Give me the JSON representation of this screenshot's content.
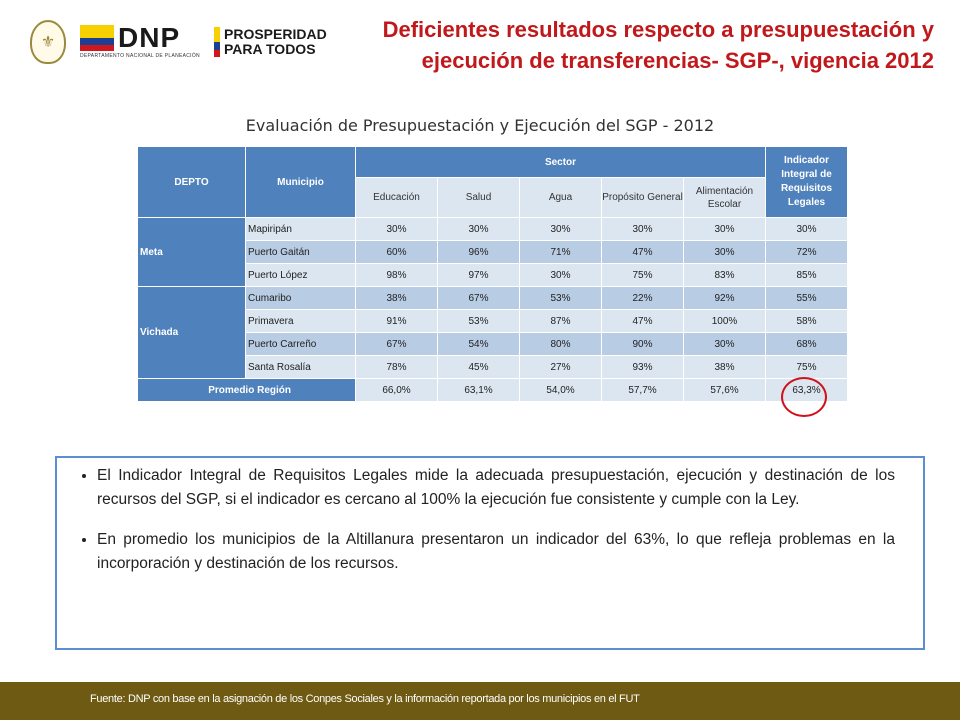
{
  "logos": {
    "dnp_text": "DNP",
    "dnp_subtitle": "DEPARTAMENTO NACIONAL DE PLANEACIÓN",
    "prosperidad_line1": "PROSPERIDAD",
    "prosperidad_line2": "PARA TODOS"
  },
  "title": "Deficientes resultados respecto a presupuestación y ejecución de transferencias- SGP-, vigencia 2012",
  "table": {
    "caption": "Evaluación de Presupuestación y Ejecución del SGP - 2012",
    "headers": {
      "depto": "DEPTO",
      "municipio": "Municipio",
      "sector": "Sector",
      "indicador": "Indicador Integral de Requisitos Legales",
      "sectors": [
        "Educación",
        "Salud",
        "Agua",
        "Propósito General",
        "Alimentación Escolar"
      ]
    },
    "groups": [
      {
        "depto": "Meta",
        "rows": [
          {
            "municipio": "Mapiripán",
            "values": [
              "30%",
              "30%",
              "30%",
              "30%",
              "30%",
              "30%"
            ]
          },
          {
            "municipio": "Puerto Gaitán",
            "values": [
              "60%",
              "96%",
              "71%",
              "47%",
              "30%",
              "72%"
            ]
          },
          {
            "municipio": "Puerto López",
            "values": [
              "98%",
              "97%",
              "30%",
              "75%",
              "83%",
              "85%"
            ]
          }
        ]
      },
      {
        "depto": "Vichada",
        "rows": [
          {
            "municipio": "Cumaribo",
            "values": [
              "38%",
              "67%",
              "53%",
              "22%",
              "92%",
              "55%"
            ]
          },
          {
            "municipio": "Primavera",
            "values": [
              "91%",
              "53%",
              "87%",
              "47%",
              "100%",
              "58%"
            ]
          },
          {
            "municipio": "Puerto Carreño",
            "values": [
              "67%",
              "54%",
              "80%",
              "90%",
              "30%",
              "68%"
            ]
          },
          {
            "municipio": "Santa Rosalía",
            "values": [
              "78%",
              "45%",
              "27%",
              "93%",
              "38%",
              "75%"
            ]
          }
        ]
      }
    ],
    "average": {
      "label": "Promedio Región",
      "values": [
        "66,0%",
        "63,1%",
        "54,0%",
        "57,7%",
        "57,6%",
        "63,3%"
      ]
    }
  },
  "notes": [
    "El Indicador Integral de Requisitos Legales mide la adecuada presupuestación, ejecución y destinación de los recursos del SGP, si el indicador es cercano al 100% la ejecución fue consistente y cumple con la Ley.",
    "En promedio los municipios de la Altillanura presentaron un indicador del 63%, lo que refleja problemas en la incorporación y destinación de los recursos."
  ],
  "footer": "Fuente: DNP con base en la asignación de los Conpes Sociales y la información reportada por los municipios en el FUT",
  "colors": {
    "title": "#c0181b",
    "header_blue": "#4f81bd",
    "row_light": "#dce6f1",
    "row_dark": "#b8cce4",
    "footer_bg": "#6f5a13",
    "highlight_circle": "#d0121b"
  }
}
